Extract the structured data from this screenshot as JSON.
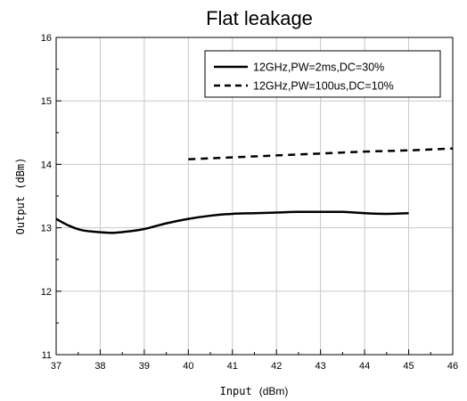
{
  "chart_data": {
    "type": "line",
    "title": "Flat leakage",
    "xlabel": {
      "main": "Input",
      "unit": "(dBm)"
    },
    "ylabel": "Output (dBm)",
    "xlim": [
      37,
      46
    ],
    "ylim": [
      11,
      16
    ],
    "x_ticks": [
      "37",
      "38",
      "39",
      "40",
      "41",
      "42",
      "43",
      "44",
      "45",
      "46"
    ],
    "y_ticks": [
      "11",
      "12",
      "13",
      "14",
      "15",
      "16"
    ],
    "grid": true,
    "legend_position": "top-right",
    "series": [
      {
        "name": "12GHz,PW=2ms,DC=30%",
        "style": "solid",
        "x": [
          37.0,
          37.3,
          37.6,
          38.0,
          38.3,
          38.6,
          39.0,
          39.5,
          40.0,
          40.5,
          41.0,
          41.5,
          42.0,
          42.5,
          43.0,
          43.5,
          44.0,
          44.5,
          45.0
        ],
        "y": [
          13.14,
          13.03,
          12.96,
          12.93,
          12.92,
          12.94,
          12.98,
          13.07,
          13.14,
          13.19,
          13.22,
          13.23,
          13.24,
          13.25,
          13.25,
          13.25,
          13.23,
          13.22,
          13.23
        ]
      },
      {
        "name": "12GHz,PW=100us,DC=10%",
        "style": "dashed",
        "x": [
          40,
          41,
          42,
          43,
          44,
          45,
          46
        ],
        "y": [
          14.08,
          14.11,
          14.14,
          14.17,
          14.2,
          14.22,
          14.25
        ]
      }
    ]
  }
}
